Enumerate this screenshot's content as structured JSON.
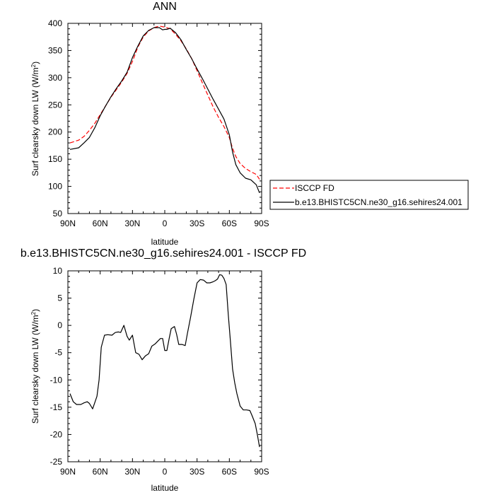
{
  "chart_data": [
    {
      "type": "line",
      "title": "ANN",
      "xlabel": "latitude",
      "ylabel": "Surf clearsky down LW (W/m²)",
      "ylabel_main": "Surf clearsky down LW (W/m",
      "ylabel_sup": "2",
      "ylabel_end": ")",
      "xlim": [
        90,
        -90
      ],
      "ylim": [
        50,
        400
      ],
      "xticks": [
        {
          "v": 90,
          "label": "90N"
        },
        {
          "v": 60,
          "label": "60N"
        },
        {
          "v": 30,
          "label": "30N"
        },
        {
          "v": 0,
          "label": "0"
        },
        {
          "v": -30,
          "label": "30S"
        },
        {
          "v": -60,
          "label": "60S"
        },
        {
          "v": -90,
          "label": "90S"
        }
      ],
      "yticks": [
        {
          "v": 50,
          "label": "50"
        },
        {
          "v": 100,
          "label": "100"
        },
        {
          "v": 150,
          "label": "150"
        },
        {
          "v": 200,
          "label": "200"
        },
        {
          "v": 250,
          "label": "250"
        },
        {
          "v": 300,
          "label": "300"
        },
        {
          "v": 350,
          "label": "350"
        },
        {
          "v": 400,
          "label": "400"
        }
      ],
      "legend_position": "right",
      "series": [
        {
          "name": "ISCCP FD",
          "color": "#ff0000",
          "dash": "dashed",
          "x": [
            88,
            80,
            75,
            70,
            65,
            60,
            55,
            50,
            45,
            40,
            35,
            30,
            25,
            20,
            15,
            10,
            5,
            0,
            -5,
            -10,
            -15,
            -20,
            -25,
            -30,
            -35,
            -40,
            -45,
            -50,
            -55,
            -60,
            -63,
            -66,
            -70,
            -75,
            -80,
            -85,
            -88
          ],
          "y": [
            180,
            185,
            192,
            203,
            216,
            232,
            248,
            264,
            278,
            292,
            308,
            330,
            356,
            375,
            386,
            392,
            395,
            393,
            390,
            380,
            368,
            353,
            335,
            313,
            290,
            268,
            246,
            227,
            210,
            190,
            170,
            155,
            142,
            133,
            127,
            122,
            113
          ]
        },
        {
          "name": "b.e13.BHISTC5CN.ne30_g16.sehires24.001",
          "color": "#000000",
          "dash": "solid",
          "x": [
            88,
            80,
            75,
            70,
            65,
            60,
            55,
            50,
            45,
            40,
            35,
            30,
            25,
            20,
            15,
            10,
            5,
            2,
            0,
            -2,
            -5,
            -10,
            -15,
            -20,
            -25,
            -30,
            -35,
            -40,
            -45,
            -50,
            -55,
            -60,
            -63,
            -66,
            -70,
            -75,
            -80,
            -85,
            -88
          ],
          "y": [
            168,
            171,
            180,
            190,
            208,
            230,
            248,
            265,
            280,
            294,
            310,
            337,
            358,
            377,
            387,
            392,
            392,
            388,
            389,
            389,
            391,
            383,
            370,
            352,
            335,
            316,
            298,
            279,
            260,
            242,
            224,
            195,
            163,
            140,
            125,
            115,
            112,
            103,
            88
          ]
        }
      ]
    },
    {
      "type": "line",
      "title": "b.e13.BHISTC5CN.ne30_g16.sehires24.001 - ISCCP FD",
      "xlabel": "latitude",
      "ylabel": "Surf clearsky down LW (W/m²)",
      "ylabel_main": "Surf clearsky down LW (W/m",
      "ylabel_sup": "2",
      "ylabel_end": ")",
      "xlim": [
        90,
        -90
      ],
      "ylim": [
        -25,
        10
      ],
      "xticks": [
        {
          "v": 90,
          "label": "90N"
        },
        {
          "v": 60,
          "label": "60N"
        },
        {
          "v": 30,
          "label": "30N"
        },
        {
          "v": 0,
          "label": "0"
        },
        {
          "v": -30,
          "label": "30S"
        },
        {
          "v": -60,
          "label": "60S"
        },
        {
          "v": -90,
          "label": "90S"
        }
      ],
      "yticks": [
        {
          "v": 10,
          "label": "10"
        },
        {
          "v": 5,
          "label": "5"
        },
        {
          "v": 0,
          "label": "0"
        },
        {
          "v": -5,
          "label": "-5"
        },
        {
          "v": -10,
          "label": "-10"
        },
        {
          "v": -15,
          "label": "-15"
        },
        {
          "v": -20,
          "label": "-20"
        },
        {
          "v": -25,
          "label": "-25"
        }
      ],
      "series": [
        {
          "color": "#000000",
          "dash": "solid",
          "x": [
            88,
            85,
            82,
            78,
            75,
            72,
            70,
            67,
            63,
            61,
            59,
            56,
            53,
            49,
            46,
            43,
            41,
            38,
            35,
            33,
            30,
            27,
            24,
            21,
            18,
            15,
            12,
            9,
            6,
            4,
            2,
            0,
            -2,
            -4,
            -6,
            -9,
            -11,
            -13,
            -16,
            -19,
            -21,
            -24,
            -27,
            -30,
            -33,
            -36,
            -39,
            -42,
            -45,
            -47,
            -49,
            -51,
            -53,
            -55,
            -57,
            -59,
            -61,
            -63,
            -65,
            -67,
            -70,
            -73,
            -76,
            -79,
            -81,
            -84,
            -86,
            -88
          ],
          "y": [
            -12.5,
            -14,
            -14.5,
            -14.5,
            -14.2,
            -14,
            -14.3,
            -15.3,
            -13,
            -10,
            -4,
            -1.8,
            -1.7,
            -1.8,
            -1.3,
            -1.2,
            -1.3,
            0,
            -2,
            -2.7,
            -1.8,
            -5,
            -5.3,
            -6.3,
            -5.6,
            -5.2,
            -3.8,
            -3.4,
            -2.8,
            -2.4,
            -2.4,
            -4.6,
            -4.6,
            -2.5,
            -0.6,
            -0.2,
            -1.6,
            -3.5,
            -3.5,
            -3.7,
            -1.5,
            1.5,
            4.8,
            7.8,
            8.4,
            8.3,
            7.8,
            7.8,
            8,
            8.2,
            8.5,
            9.3,
            9.2,
            8.6,
            7.5,
            2,
            -3,
            -8,
            -10.5,
            -12.5,
            -14.8,
            -15.5,
            -15.5,
            -15.6,
            -16.5,
            -18,
            -20,
            -22.3
          ]
        }
      ]
    }
  ]
}
